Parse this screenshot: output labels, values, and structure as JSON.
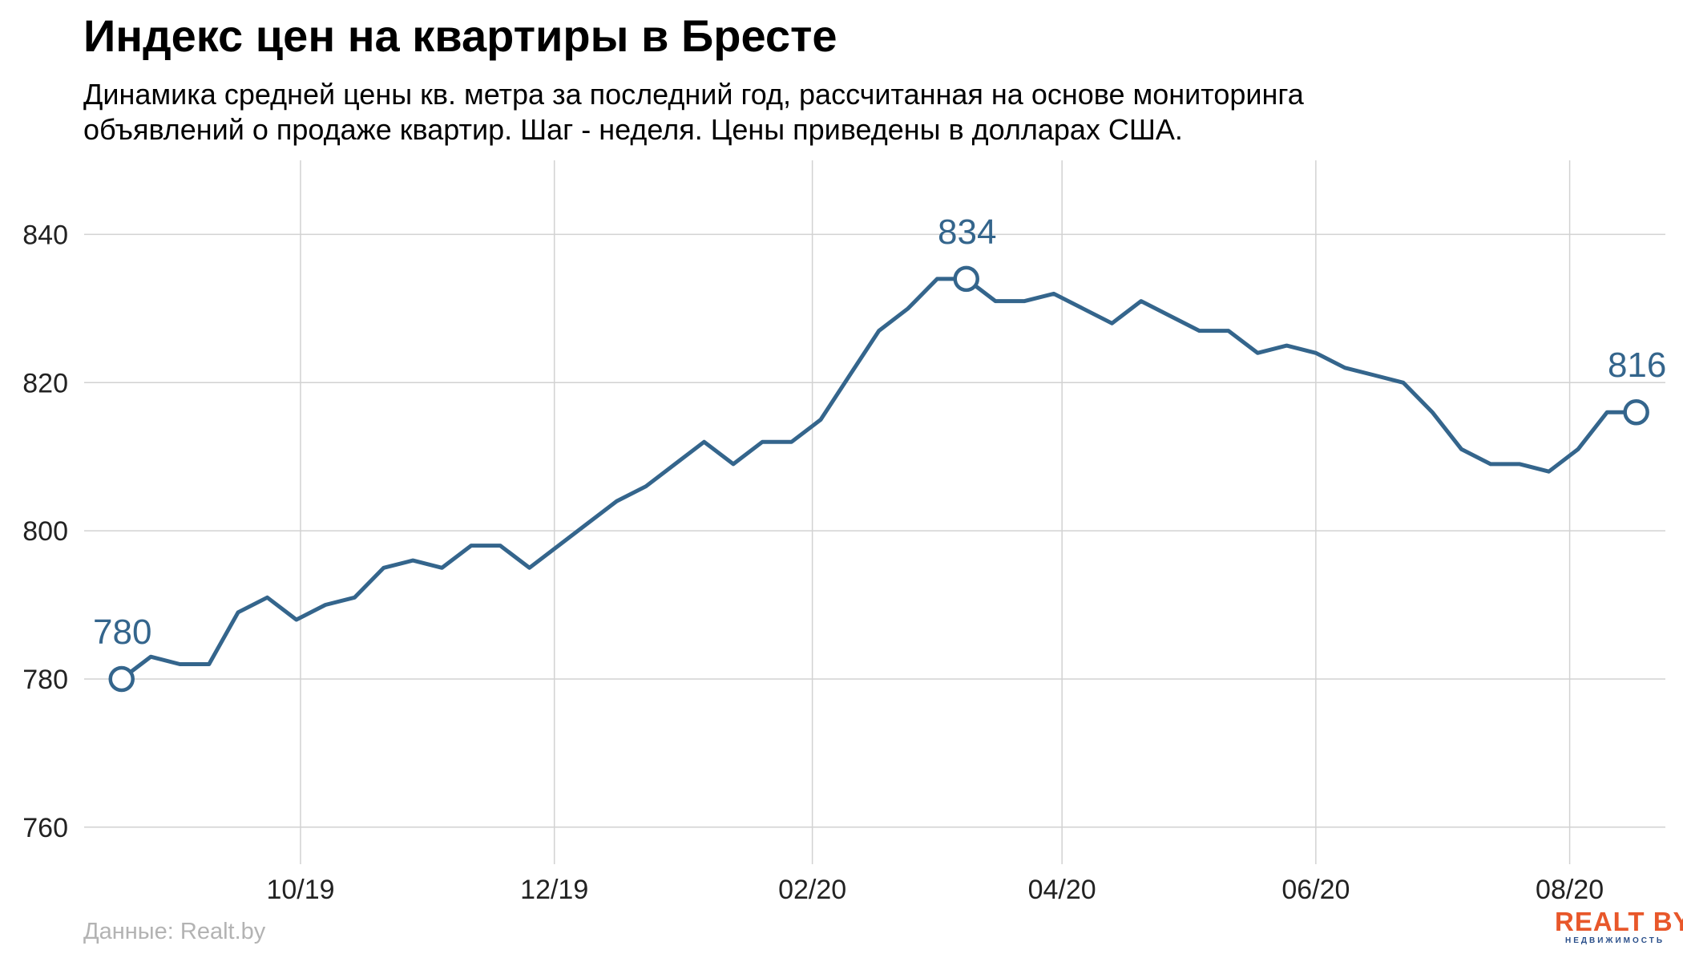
{
  "header": {
    "title": "Индекс цен на квартиры в Бресте",
    "subtitle_line1": "Динамика средней цены кв. метра за последний год, рассчитанная на основе мониторинга",
    "subtitle_line2": "объявлений о продаже квартир. Шаг - неделя. Цены приведены в долларах США."
  },
  "footer": {
    "source": "Данные: Realt.by",
    "logo_text": "REALT BY",
    "logo_subtext": "НЕДВИЖИМОСТЬ"
  },
  "colors": {
    "line": "#34658c",
    "grid": "#d2d2d2",
    "logo": "#e8572a",
    "logo_sub": "#2a4f8a",
    "source_text": "#b3b3b3"
  },
  "chart_data": {
    "type": "line",
    "title": "Индекс цен на квартиры в Бресте",
    "xlabel": "",
    "ylabel": "",
    "x_start": "2019-08-19",
    "x_step_days": 7,
    "xlim": [
      "2019-08-10",
      "2020-08-24"
    ],
    "ylim": [
      755,
      850
    ],
    "yticks": [
      760,
      780,
      800,
      820,
      840
    ],
    "xticks": [
      {
        "date": "2019-10-01",
        "label": "10/19"
      },
      {
        "date": "2019-12-01",
        "label": "12/19"
      },
      {
        "date": "2020-02-01",
        "label": "02/20"
      },
      {
        "date": "2020-04-01",
        "label": "04/20"
      },
      {
        "date": "2020-06-01",
        "label": "06/20"
      },
      {
        "date": "2020-08-01",
        "label": "08/20"
      }
    ],
    "grid": true,
    "legend": "none",
    "series": [
      {
        "values": [
          780,
          783,
          782,
          782,
          789,
          791,
          788,
          790,
          791,
          795,
          796,
          795,
          798,
          798,
          795,
          798,
          801,
          804,
          806,
          809,
          812,
          809,
          812,
          812,
          815,
          821,
          827,
          830,
          834,
          834,
          831,
          831,
          832,
          830,
          828,
          831,
          829,
          827,
          827,
          824,
          825,
          824,
          822,
          821,
          820,
          816,
          811,
          809,
          809,
          808,
          811,
          816,
          816
        ]
      }
    ],
    "highlights": [
      {
        "index": 0,
        "label": "780"
      },
      {
        "index": 29,
        "label": "834"
      },
      {
        "index": 52,
        "label": "816"
      }
    ]
  }
}
